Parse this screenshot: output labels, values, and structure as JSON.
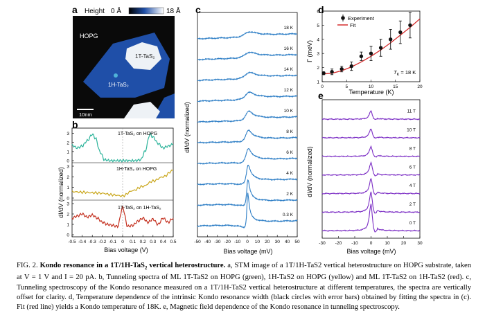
{
  "panels": {
    "a": {
      "label": "a",
      "colorbar_label": "Height",
      "colorbar_min": "0 Å",
      "colorbar_max": "18 Å",
      "region_labels": [
        "HOPG",
        "1T-TaS₂",
        "1H-TaS₂"
      ],
      "scalebar": "10nm",
      "colors": {
        "background": "#0a0a0a",
        "hopg": "#1f4fa8",
        "top": "#eef2f6"
      }
    },
    "b": {
      "label": "b",
      "traces": [
        {
          "name": "1T-TaS₂ on HOPG",
          "color": "#2bb39a"
        },
        {
          "name": "1H-TaS₂ on HOPG",
          "color": "#c9a61a"
        },
        {
          "name": "1T-TaS₂ on 1H-TaS₂",
          "color": "#c4301f"
        }
      ],
      "xlabel": "Bias voltage (V)",
      "ylabel": "dI/dV (normalized)",
      "xticks": [
        "-0.5",
        "-0.4",
        "-0.3",
        "-0.2",
        "-0.1",
        "0",
        "0.1",
        "0.2",
        "0.3",
        "0.4",
        "0.5"
      ],
      "yticks": [
        "0",
        "1",
        "2",
        "3"
      ]
    },
    "c": {
      "label": "c",
      "temperatures": [
        "18 K",
        "16 K",
        "14 K",
        "12 K",
        "10 K",
        "8 K",
        "6 K",
        "4 K",
        "2 K",
        "0.3 K"
      ],
      "xlabel": "Bias voltage (mV)",
      "ylabel": "dI/dV (normalized)",
      "xticks": [
        "-50",
        "-40",
        "-30",
        "-20",
        "-10",
        "0",
        "10",
        "20",
        "30",
        "40",
        "50"
      ],
      "color": "#2f7fc6"
    },
    "d": {
      "label": "d",
      "legend": [
        "Experiment",
        "Fit"
      ],
      "annotation": "T",
      "annotation_sub": "K",
      "annotation_value": " = 18 K",
      "xlabel": "Temperature (K)",
      "ylabel": "Γ (meV)",
      "xticks": [
        "0",
        "5",
        "10",
        "15",
        "20"
      ],
      "yticks": [
        "1",
        "2",
        "3",
        "4",
        "5",
        "6"
      ],
      "fit_color": "#d42a2a"
    },
    "e": {
      "label": "e",
      "fields": [
        "11 T",
        "10 T",
        "8 T",
        "6 T",
        "4 T",
        "2 T",
        "0 T"
      ],
      "xlabel": "Bias voltage (mV)",
      "ylabel": "dI/dV (normalized)",
      "xticks": [
        "-30",
        "-20",
        "-10",
        "0",
        "10",
        "20",
        "30"
      ],
      "color": "#7a2bc4"
    }
  },
  "chart_data": [
    {
      "type": "line",
      "panel": "b",
      "series": [
        {
          "name": "1T-TaS₂ on HOPG",
          "x": [
            -0.5,
            -0.45,
            -0.4,
            -0.35,
            -0.3,
            -0.27,
            -0.22,
            -0.18,
            -0.12,
            -0.05,
            0,
            0.05,
            0.12,
            0.18,
            0.22,
            0.27,
            0.3,
            0.35,
            0.4,
            0.45,
            0.5
          ],
          "y": [
            1.7,
            1.4,
            1.6,
            2.2,
            2.9,
            2.5,
            0.9,
            0.1,
            0,
            0,
            0,
            0,
            0,
            0.1,
            1.0,
            2.9,
            2.6,
            1.9,
            1.4,
            1.6,
            1.8
          ]
        },
        {
          "name": "1H-TaS₂ on HOPG",
          "x": [
            -0.5,
            -0.4,
            -0.3,
            -0.2,
            -0.1,
            0,
            0.1,
            0.2,
            0.3,
            0.4,
            0.5
          ],
          "y": [
            0.6,
            0.55,
            0.5,
            0.45,
            0.3,
            0.2,
            0.7,
            1.1,
            1.6,
            2.0,
            2.6
          ]
        },
        {
          "name": "1T-TaS₂ on 1H-TaS₂",
          "x": [
            -0.5,
            -0.45,
            -0.4,
            -0.35,
            -0.3,
            -0.25,
            -0.2,
            -0.15,
            -0.1,
            -0.05,
            0,
            0.05,
            0.1,
            0.15,
            0.2,
            0.25,
            0.3,
            0.35,
            0.4,
            0.45,
            0.5
          ],
          "y": [
            1.6,
            1.8,
            2.0,
            1.7,
            1.9,
            1.6,
            1.2,
            1.0,
            0.9,
            0.8,
            2.6,
            0.8,
            0.9,
            1.3,
            1.6,
            1.2,
            1.5,
            1.0,
            1.6,
            1.2,
            1.6
          ]
        }
      ]
    },
    {
      "type": "scatter",
      "panel": "d",
      "series": [
        {
          "name": "Experiment",
          "x": [
            0.3,
            2,
            4,
            6,
            8,
            10,
            12,
            14,
            16,
            18
          ],
          "y": [
            1.6,
            1.7,
            1.9,
            2.1,
            2.8,
            3.0,
            3.4,
            4.0,
            4.5,
            5.0
          ],
          "err": [
            0.1,
            0.2,
            0.2,
            0.3,
            0.3,
            0.5,
            0.6,
            0.7,
            0.8,
            0.9
          ]
        },
        {
          "name": "Fit",
          "x": [
            0,
            2,
            4,
            6,
            8,
            10,
            12,
            14,
            16,
            18,
            20
          ],
          "y": [
            1.55,
            1.6,
            1.78,
            2.05,
            2.4,
            2.8,
            3.25,
            3.75,
            4.3,
            4.85,
            5.45
          ]
        }
      ],
      "xlabel": "Temperature (K)",
      "ylabel": "Γ (meV)",
      "xlim": [
        0,
        20
      ],
      "ylim": [
        1,
        6
      ]
    },
    {
      "type": "line",
      "panel": "c",
      "xlim": [
        -50,
        50
      ],
      "series_names": [
        "18 K",
        "16 K",
        "14 K",
        "12 K",
        "10 K",
        "8 K",
        "6 K",
        "4 K",
        "2 K",
        "0.3 K"
      ],
      "peak_amplitude": [
        0.25,
        0.27,
        0.3,
        0.35,
        0.45,
        0.55,
        0.7,
        0.95,
        1.3,
        1.7
      ],
      "peak_width_mV": [
        7,
        6.5,
        6,
        5.5,
        4.5,
        3.8,
        3.2,
        2.4,
        1.7,
        1.3
      ]
    },
    {
      "type": "line",
      "panel": "e",
      "xlim": [
        -30,
        30
      ],
      "series_names": [
        "11 T",
        "10 T",
        "8 T",
        "6 T",
        "4 T",
        "2 T",
        "0 T"
      ],
      "peak_amplitude": [
        0.5,
        0.55,
        0.6,
        0.75,
        0.9,
        1.2,
        1.6
      ]
    }
  ],
  "caption": {
    "prefix": "FIG. 2.",
    "title": "Kondo resonance in a 1T/1H-TaS",
    "title_sub": "2",
    "title_end": " vertical heterostructure.",
    "body": " a, STM image of a 1T/1H-TaS2 vertical heterostructure on HOPG substrate, taken at V = 1 V and I = 20 pA. b, Tunneling spectra of ML 1T-TaS2 on HOPG (green), 1H-TaS2 on HOPG (yellow) and ML 1T-TaS2 on 1H-TaS2 (red). c, Tunneling spectroscopy of the Kondo resonance measured on a 1T/1H-TaS2 vertical heterostructure at different temperatures, the spectra are vertically offset for clarity. d, Temperature dependence of the intrinsic Kondo resonance width (black circles with error bars) obtained by fitting the spectra in (c). Fit (red line) yields a Kondo temperature of 18K. e, Magnetic field dependence of the Kondo resonance in tunneling spectroscopy."
  }
}
